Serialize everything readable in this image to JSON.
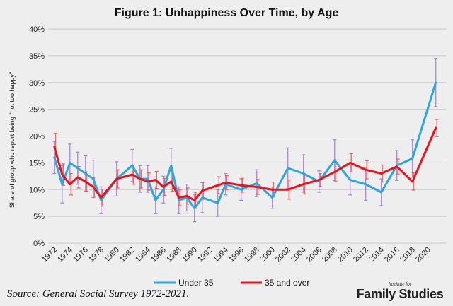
{
  "title": "Figure 1: Unhappiness Over Time, by Age",
  "source": "Source: General Social Survey 1972-2021.",
  "logo": {
    "small": "Institute for",
    "big": "Family Studies"
  },
  "chart_data": {
    "type": "line",
    "ylabel": "Share of group who report being \"not too happy\"",
    "xlabel": "",
    "ylim": [
      0,
      40
    ],
    "yticks": [
      "0%",
      "5%",
      "10%",
      "15%",
      "20%",
      "25%",
      "30%",
      "35%",
      "40%"
    ],
    "xtick_labels": [
      "1972",
      "1974",
      "1976",
      "1978",
      "1980",
      "1982",
      "1984",
      "1986",
      "1988",
      "1990",
      "1992",
      "1994",
      "1996",
      "1998",
      "2000",
      "2002",
      "2004",
      "2006",
      "2008",
      "2010",
      "2012",
      "2014",
      "2016",
      "2018",
      "2020"
    ],
    "grid": true,
    "legend": "bottom",
    "series": [
      {
        "name": "Under 35",
        "color": "#29a8e0",
        "x": [
          1972,
          1973,
          1974,
          1975,
          1976,
          1977,
          1978,
          1980,
          1982,
          1983,
          1984,
          1985,
          1986,
          1987,
          1988,
          1989,
          1990,
          1991,
          1993,
          1994,
          1996,
          1998,
          2000,
          2002,
          2004,
          2006,
          2008,
          2010,
          2012,
          2014,
          2016,
          2018,
          2021
        ],
        "y": [
          16.0,
          11.0,
          15.0,
          14.0,
          13.0,
          12.0,
          8.0,
          12.0,
          14.5,
          12.0,
          12.0,
          8.0,
          10.0,
          14.5,
          8.0,
          8.5,
          6.5,
          8.5,
          7.5,
          11.0,
          10.0,
          11.2,
          8.5,
          14.0,
          13.0,
          11.5,
          15.5,
          11.8,
          11.0,
          9.5,
          14.5,
          15.8,
          30.0
        ],
        "err": [
          3.0,
          3.5,
          3.5,
          3.0,
          3.3,
          3.5,
          2.5,
          3.2,
          3.0,
          2.5,
          2.5,
          2.5,
          2.5,
          3.2,
          2.5,
          2.5,
          2.5,
          2.8,
          2.5,
          2.0,
          2.0,
          2.5,
          2.0,
          3.8,
          3.5,
          2.0,
          3.8,
          2.8,
          3.0,
          2.5,
          2.8,
          3.5,
          4.5
        ]
      },
      {
        "name": "35 and over",
        "color": "#e8141c",
        "x": [
          1972,
          1973,
          1974,
          1975,
          1976,
          1977,
          1978,
          1980,
          1982,
          1983,
          1984,
          1985,
          1986,
          1987,
          1988,
          1989,
          1990,
          1991,
          1993,
          1994,
          1996,
          1998,
          2000,
          2002,
          2004,
          2006,
          2008,
          2010,
          2012,
          2014,
          2016,
          2018,
          2021
        ],
        "y": [
          18.0,
          12.8,
          11.0,
          12.3,
          11.5,
          10.5,
          8.5,
          12.0,
          12.8,
          12.0,
          11.5,
          11.8,
          10.5,
          11.5,
          8.5,
          8.8,
          8.0,
          9.8,
          10.8,
          11.3,
          10.8,
          10.5,
          10.0,
          10.0,
          11.0,
          11.8,
          13.3,
          15.0,
          13.7,
          13.0,
          14.3,
          11.5,
          21.5
        ]
      }
    ]
  }
}
